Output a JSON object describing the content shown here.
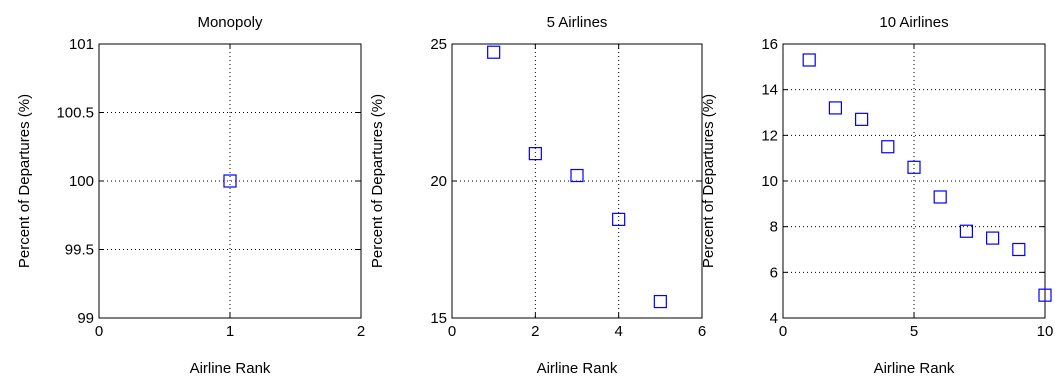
{
  "chart_data": [
    {
      "type": "scatter",
      "title": "Monopoly",
      "xlabel": "Airline Rank",
      "ylabel": "Percent of Departures (%)",
      "xlim": [
        0,
        2
      ],
      "ylim": [
        99,
        101
      ],
      "xticks": [
        0,
        1,
        2
      ],
      "xtick_labels": [
        "0",
        "1",
        "2"
      ],
      "yticks": [
        99,
        99.5,
        100,
        100.5,
        101
      ],
      "ytick_labels": [
        "99",
        "99.5",
        "100",
        "100.5",
        "101"
      ],
      "grid": true,
      "marker": "square",
      "color": "#0000ff",
      "x": [
        1
      ],
      "y": [
        100
      ]
    },
    {
      "type": "scatter",
      "title": "5 Airlines",
      "xlabel": "Airline Rank",
      "ylabel": "Percent of Departures (%)",
      "xlim": [
        0,
        6
      ],
      "ylim": [
        15,
        25
      ],
      "xticks": [
        0,
        2,
        4,
        6
      ],
      "xtick_labels": [
        "0",
        "2",
        "4",
        "6"
      ],
      "yticks": [
        15,
        20,
        25
      ],
      "ytick_labels": [
        "15",
        "20",
        "25"
      ],
      "grid": true,
      "marker": "square",
      "color": "#0000ff",
      "x": [
        1,
        2,
        3,
        4,
        5
      ],
      "y": [
        24.7,
        21.0,
        20.2,
        18.6,
        15.6
      ]
    },
    {
      "type": "scatter",
      "title": "10 Airlines",
      "xlabel": "Airline Rank",
      "ylabel": "Percent of Departures (%)",
      "xlim": [
        0,
        10
      ],
      "ylim": [
        4,
        16
      ],
      "xticks": [
        0,
        5,
        10
      ],
      "xtick_labels": [
        "0",
        "5",
        "10"
      ],
      "yticks": [
        4,
        6,
        8,
        10,
        12,
        14,
        16
      ],
      "ytick_labels": [
        "4",
        "6",
        "8",
        "10",
        "12",
        "14",
        "16"
      ],
      "grid": true,
      "marker": "square",
      "color": "#0000ff",
      "x": [
        1,
        2,
        3,
        4,
        5,
        6,
        7,
        8,
        9,
        10
      ],
      "y": [
        15.3,
        13.2,
        12.7,
        11.5,
        10.6,
        9.3,
        7.8,
        7.5,
        7.0,
        5.0
      ]
    }
  ]
}
